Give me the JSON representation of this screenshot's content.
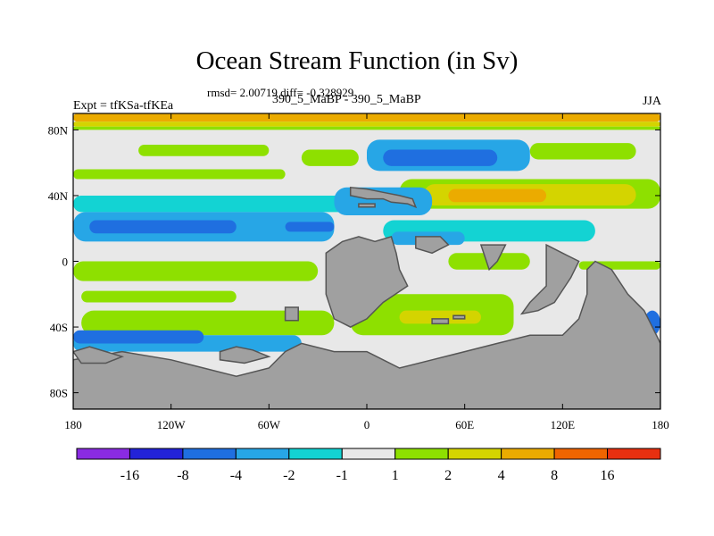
{
  "header": {
    "title": "Ocean Stream Function (in Sv)",
    "stats": "rmsd= 2.00719 diff= -0.328929",
    "left_label": "Expt = tfKSa-tfKEa",
    "center_label": "390_5_MaBP - 390_5_MaBP",
    "right_label": "JJA"
  },
  "chart_data": {
    "type": "heatmap",
    "title": "Ocean Stream Function (in Sv)",
    "x_axis": {
      "range": [
        -180,
        180
      ],
      "ticks": [
        -180,
        -120,
        -60,
        0,
        60,
        120,
        180
      ],
      "tick_labels": [
        "180",
        "120W",
        "60W",
        "0",
        "60E",
        "120E",
        "180"
      ]
    },
    "y_axis": {
      "range": [
        -90,
        90
      ],
      "ticks": [
        80,
        40,
        0,
        -40,
        -80
      ],
      "tick_labels": [
        "80N",
        "40N",
        "0",
        "40S",
        "80S"
      ]
    },
    "colorbar": {
      "labels": [
        "-16",
        "-8",
        "-4",
        "-2",
        "-1",
        "1",
        "2",
        "4",
        "8",
        "16"
      ],
      "colors": [
        "#8a2be2",
        "#2323d8",
        "#1f6fe0",
        "#27a6e6",
        "#13d3d3",
        "#e8e8e8",
        "#8ee000",
        "#d4d400",
        "#ebab00",
        "#f06500",
        "#e83010"
      ]
    },
    "land_color": "#a0a0a0",
    "ocean_neutral_color": "#e8e8e8",
    "bands": [
      {
        "lon": [
          -180,
          180
        ],
        "lat": [
          85,
          90
        ],
        "color": "#ebab00"
      },
      {
        "lon": [
          -180,
          180
        ],
        "lat": [
          82,
          85
        ],
        "color": "#d4d400"
      },
      {
        "lon": [
          -180,
          180
        ],
        "lat": [
          80,
          82
        ],
        "color": "#8ee000"
      },
      {
        "lon": [
          -140,
          -60
        ],
        "lat": [
          64,
          71
        ],
        "color": "#8ee000"
      },
      {
        "lon": [
          -180,
          -50
        ],
        "lat": [
          50,
          56
        ],
        "color": "#8ee000"
      },
      {
        "lon": [
          -40,
          -5
        ],
        "lat": [
          58,
          68
        ],
        "color": "#8ee000"
      },
      {
        "lon": [
          -180,
          -10
        ],
        "lat": [
          30,
          40
        ],
        "color": "#13d3d3"
      },
      {
        "lon": [
          -180,
          -20
        ],
        "lat": [
          12,
          30
        ],
        "color": "#27a6e6"
      },
      {
        "lon": [
          -170,
          -80
        ],
        "lat": [
          17,
          25
        ],
        "color": "#1f6fe0"
      },
      {
        "lon": [
          -50,
          -20
        ],
        "lat": [
          18,
          24
        ],
        "color": "#1f6fe0"
      },
      {
        "lon": [
          0,
          100
        ],
        "lat": [
          55,
          74
        ],
        "color": "#27a6e6"
      },
      {
        "lon": [
          10,
          80
        ],
        "lat": [
          58,
          68
        ],
        "color": "#1f6fe0"
      },
      {
        "lon": [
          100,
          165
        ],
        "lat": [
          62,
          72
        ],
        "color": "#8ee000"
      },
      {
        "lon": [
          20,
          180
        ],
        "lat": [
          32,
          50
        ],
        "color": "#8ee000"
      },
      {
        "lon": [
          35,
          165
        ],
        "lat": [
          34,
          47
        ],
        "color": "#d4d400"
      },
      {
        "lon": [
          50,
          110
        ],
        "lat": [
          36,
          44
        ],
        "color": "#ebab00"
      },
      {
        "lon": [
          -20,
          40
        ],
        "lat": [
          28,
          45
        ],
        "color": "#27a6e6"
      },
      {
        "lon": [
          10,
          140
        ],
        "lat": [
          12,
          25
        ],
        "color": "#13d3d3"
      },
      {
        "lon": [
          15,
          60
        ],
        "lat": [
          10,
          18
        ],
        "color": "#27a6e6"
      },
      {
        "lon": [
          -180,
          -30
        ],
        "lat": [
          -12,
          0
        ],
        "color": "#8ee000"
      },
      {
        "lon": [
          -175,
          -80
        ],
        "lat": [
          -25,
          -18
        ],
        "color": "#8ee000"
      },
      {
        "lon": [
          -175,
          -20
        ],
        "lat": [
          -45,
          -30
        ],
        "color": "#8ee000"
      },
      {
        "lon": [
          -180,
          -40
        ],
        "lat": [
          -55,
          -45
        ],
        "color": "#27a6e6"
      },
      {
        "lon": [
          -180,
          -100
        ],
        "lat": [
          -50,
          -42
        ],
        "color": "#1f6fe0"
      },
      {
        "lon": [
          -10,
          90
        ],
        "lat": [
          -45,
          -20
        ],
        "color": "#8ee000"
      },
      {
        "lon": [
          20,
          70
        ],
        "lat": [
          -38,
          -30
        ],
        "color": "#d4d400"
      },
      {
        "lon": [
          50,
          100
        ],
        "lat": [
          -5,
          5
        ],
        "color": "#8ee000"
      },
      {
        "lon": [
          130,
          180
        ],
        "lat": [
          -5,
          0
        ],
        "color": "#8ee000"
      },
      {
        "lon": [
          170,
          180
        ],
        "lat": [
          -45,
          -30
        ],
        "color": "#1f6fe0"
      }
    ],
    "land": [
      {
        "name": "eurasia-block",
        "pts": [
          [
            -10,
            45
          ],
          [
            -10,
            40
          ],
          [
            0,
            38
          ],
          [
            10,
            38
          ],
          [
            15,
            36
          ],
          [
            25,
            35
          ],
          [
            30,
            33
          ],
          [
            28,
            38
          ],
          [
            20,
            40
          ],
          [
            10,
            42
          ],
          [
            0,
            44
          ]
        ]
      },
      {
        "name": "small-island",
        "pts": [
          [
            -5,
            35
          ],
          [
            5,
            35
          ],
          [
            5,
            33
          ],
          [
            -5,
            33
          ]
        ]
      },
      {
        "name": "africa",
        "pts": [
          [
            -25,
            5
          ],
          [
            -15,
            12
          ],
          [
            -5,
            15
          ],
          [
            5,
            12
          ],
          [
            15,
            15
          ],
          [
            18,
            5
          ],
          [
            20,
            -5
          ],
          [
            25,
            -15
          ],
          [
            10,
            -25
          ],
          [
            0,
            -35
          ],
          [
            -10,
            -40
          ],
          [
            -20,
            -35
          ],
          [
            -25,
            -20
          ]
        ]
      },
      {
        "name": "small-atlantic-island",
        "pts": [
          [
            -50,
            -28
          ],
          [
            -42,
            -28
          ],
          [
            -42,
            -36
          ],
          [
            -50,
            -36
          ]
        ]
      },
      {
        "name": "arabia",
        "pts": [
          [
            30,
            15
          ],
          [
            45,
            15
          ],
          [
            50,
            10
          ],
          [
            40,
            5
          ],
          [
            30,
            8
          ]
        ]
      },
      {
        "name": "india",
        "pts": [
          [
            70,
            10
          ],
          [
            85,
            10
          ],
          [
            80,
            0
          ],
          [
            75,
            -5
          ]
        ]
      },
      {
        "name": "sea-islands",
        "pts": [
          [
            40,
            -35
          ],
          [
            50,
            -35
          ],
          [
            50,
            -38
          ],
          [
            40,
            -38
          ]
        ]
      },
      {
        "name": "sea-island-2",
        "pts": [
          [
            53,
            -33
          ],
          [
            60,
            -33
          ],
          [
            60,
            -35
          ],
          [
            53,
            -35
          ]
        ]
      },
      {
        "name": "asia-east",
        "pts": [
          [
            110,
            10
          ],
          [
            120,
            5
          ],
          [
            130,
            0
          ],
          [
            125,
            -10
          ],
          [
            115,
            -25
          ],
          [
            105,
            -30
          ],
          [
            95,
            -32
          ],
          [
            100,
            -25
          ],
          [
            110,
            -15
          ]
        ]
      },
      {
        "name": "australia-like",
        "pts": [
          [
            140,
            0
          ],
          [
            150,
            -5
          ],
          [
            160,
            -20
          ],
          [
            170,
            -30
          ],
          [
            175,
            -40
          ],
          [
            180,
            -50
          ],
          [
            180,
            -90
          ],
          [
            -180,
            -90
          ],
          [
            -180,
            -60
          ],
          [
            -150,
            -55
          ],
          [
            -120,
            -60
          ],
          [
            -100,
            -65
          ],
          [
            -80,
            -70
          ],
          [
            -60,
            -65
          ],
          [
            -50,
            -55
          ],
          [
            -40,
            -50
          ],
          [
            -20,
            -55
          ],
          [
            0,
            -55
          ],
          [
            10,
            -60
          ],
          [
            20,
            -65
          ],
          [
            40,
            -60
          ],
          [
            60,
            -55
          ],
          [
            80,
            -50
          ],
          [
            100,
            -45
          ],
          [
            120,
            -45
          ],
          [
            130,
            -35
          ],
          [
            135,
            -20
          ],
          [
            135,
            -5
          ]
        ]
      },
      {
        "name": "south-pole-left",
        "pts": [
          [
            -180,
            -55
          ],
          [
            -170,
            -52
          ],
          [
            -160,
            -55
          ],
          [
            -150,
            -58
          ],
          [
            -160,
            -62
          ],
          [
            -175,
            -62
          ]
        ]
      },
      {
        "name": "south-pole-mid",
        "pts": [
          [
            -90,
            -55
          ],
          [
            -80,
            -52
          ],
          [
            -70,
            -54
          ],
          [
            -60,
            -58
          ],
          [
            -75,
            -62
          ],
          [
            -90,
            -60
          ]
        ]
      }
    ]
  }
}
